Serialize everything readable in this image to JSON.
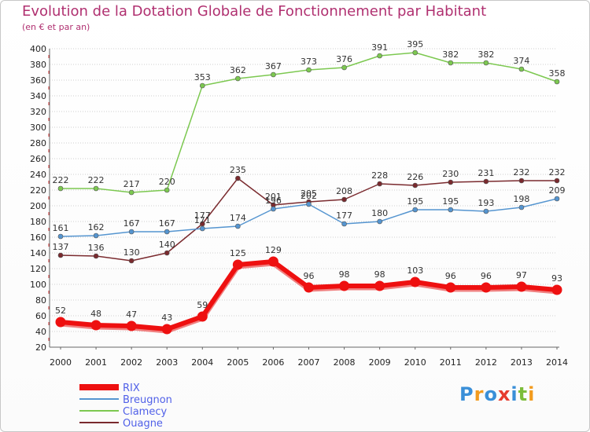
{
  "chart_data": {
    "type": "line",
    "title": "Evolution de la Dotation Globale de Fonctionnement par Habitant",
    "subtitle": "(en € et par an)",
    "xlabel": "",
    "ylabel": "",
    "ylim": [
      20,
      400
    ],
    "ytick_step": 20,
    "grid": "horizontal-dotted",
    "legend_position": "bottom-left",
    "categories": [
      "2000",
      "2001",
      "2002",
      "2003",
      "2004",
      "2005",
      "2006",
      "2007",
      "2008",
      "2009",
      "2010",
      "2011",
      "2012",
      "2013",
      "2014"
    ],
    "series": [
      {
        "name": "Clamecy",
        "color": "#7cc850",
        "label_color": "#5060e8",
        "values": [
          222,
          222,
          217,
          220,
          353,
          362,
          367,
          373,
          376,
          391,
          395,
          382,
          382,
          374,
          358
        ]
      },
      {
        "name": "Ouagne",
        "color": "#7a2a2e",
        "label_color": "#5060e8",
        "values": [
          137,
          136,
          130,
          140,
          177,
          235,
          201,
          205,
          208,
          228,
          226,
          230,
          231,
          232,
          232
        ]
      },
      {
        "name": "Breugnon",
        "color": "#5595d0",
        "label_color": "#5060e8",
        "values": [
          161,
          162,
          167,
          167,
          171,
          174,
          196,
          202,
          177,
          180,
          195,
          195,
          193,
          198,
          209
        ]
      },
      {
        "name": "RIX",
        "color": "#ee1010",
        "label_color": "#5060e8",
        "values": [
          52,
          48,
          47,
          43,
          59,
          125,
          129,
          96,
          98,
          98,
          103,
          96,
          96,
          97,
          93
        ]
      }
    ],
    "legend_order": [
      "RIX",
      "Breugnon",
      "Clamecy",
      "Ouagne"
    ]
  },
  "branding": {
    "logo_letters": [
      "P",
      "r",
      "o",
      "x",
      "i",
      "t",
      "i"
    ],
    "logo_colors": [
      "#3a8fd8",
      "#f29b1e",
      "#3a8fd8",
      "#e63c2f",
      "#3a8fd8",
      "#7cbd3a",
      "#f29b1e"
    ]
  }
}
